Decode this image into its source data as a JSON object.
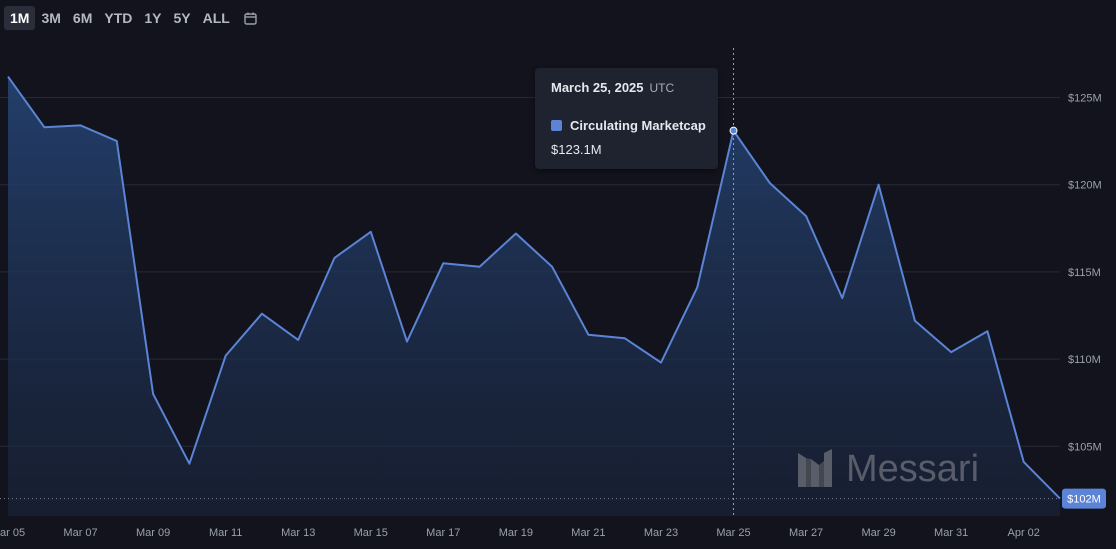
{
  "range_selector": {
    "options": [
      "1M",
      "3M",
      "6M",
      "YTD",
      "1Y",
      "5Y",
      "ALL"
    ],
    "active": "1M"
  },
  "icons": {
    "calendar": "calendar-icon",
    "watermark_logo": "messari-logo-icon"
  },
  "tooltip": {
    "date": "March 25, 2025",
    "timezone": "UTC",
    "series_name": "Circulating Marketcap",
    "value": "$123.1M"
  },
  "watermark": {
    "text": "Messari"
  },
  "colors": {
    "background": "#12131c",
    "line": "#5b84d6",
    "fill_top": "#24416f",
    "gridline": "#262a36",
    "current_badge": "#5b84d6"
  },
  "chart_data": {
    "type": "area",
    "x": [
      "Mar 05",
      "Mar 06",
      "Mar 07",
      "Mar 08",
      "Mar 09",
      "Mar 10",
      "Mar 11",
      "Mar 12",
      "Mar 13",
      "Mar 14",
      "Mar 15",
      "Mar 16",
      "Mar 17",
      "Mar 18",
      "Mar 19",
      "Mar 20",
      "Mar 21",
      "Mar 22",
      "Mar 23",
      "Mar 24",
      "Mar 25",
      "Mar 26",
      "Mar 27",
      "Mar 28",
      "Mar 29",
      "Mar 30",
      "Mar 31",
      "Apr 01",
      "Apr 02",
      "Apr 03"
    ],
    "x_tick_labels": [
      "ar 05",
      "Mar 07",
      "Mar 09",
      "Mar 11",
      "Mar 13",
      "Mar 15",
      "Mar 17",
      "Mar 19",
      "Mar 21",
      "Mar 23",
      "Mar 25",
      "Mar 27",
      "Mar 29",
      "Mar 31",
      "Apr 02"
    ],
    "series": [
      {
        "name": "Circulating Marketcap",
        "values": [
          126.2,
          123.3,
          123.4,
          122.5,
          108.0,
          104.0,
          110.2,
          112.6,
          111.1,
          115.8,
          117.3,
          111.0,
          115.5,
          115.3,
          117.2,
          115.3,
          111.4,
          111.2,
          109.8,
          114.1,
          123.1,
          120.1,
          118.2,
          113.5,
          120.0,
          112.2,
          110.4,
          111.6,
          104.1,
          102.0
        ]
      }
    ],
    "y_ticks": [
      105,
      110,
      115,
      120,
      125
    ],
    "y_tick_labels": [
      "$105M",
      "$110M",
      "$115M",
      "$120M",
      "$125M"
    ],
    "ylim": [
      101,
      128.3
    ],
    "current_value_label": "$102M",
    "current_value": 102.0,
    "hover_index": 20,
    "grid": "horizontal",
    "ylabel_position": "right"
  }
}
